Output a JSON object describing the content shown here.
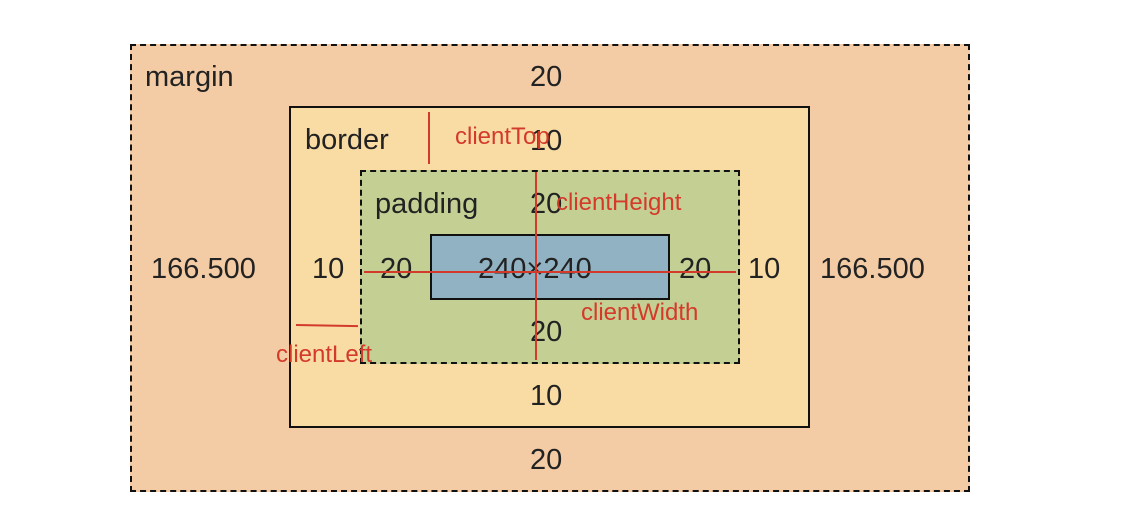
{
  "layers": {
    "margin": {
      "label": "margin",
      "top": "20",
      "bottom": "20",
      "left": "166.500",
      "right": "166.500"
    },
    "border": {
      "label": "border",
      "top": "10",
      "bottom": "10",
      "left": "10",
      "right": "10"
    },
    "padding": {
      "label": "padding",
      "top": "20",
      "bottom": "20",
      "left": "20",
      "right": "20"
    },
    "content": {
      "size": "240×240"
    }
  },
  "annotations": {
    "client_top": "clientTop",
    "client_height": "clientHeight",
    "client_width": "clientWidth",
    "client_left": "clientLeft"
  },
  "colors": {
    "margin": "#f3cca5",
    "border": "#f8dca4",
    "padding": "#c4cf94",
    "content": "#90b2c2",
    "annotation": "#d43a2a"
  }
}
